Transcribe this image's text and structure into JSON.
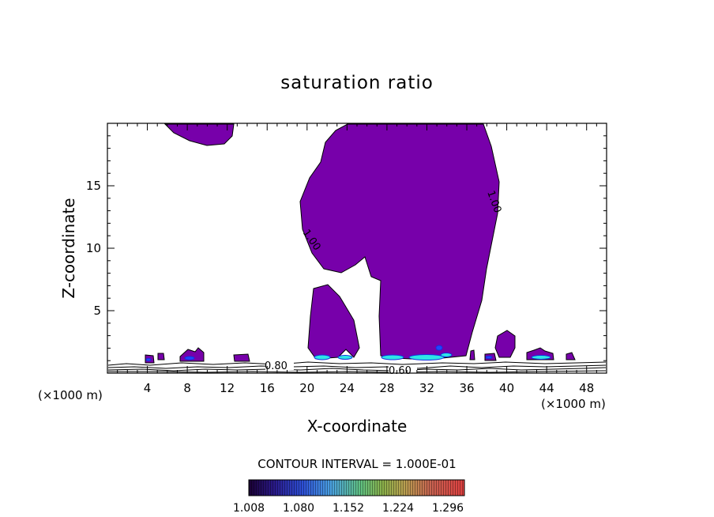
{
  "chart_data": {
    "type": "contour",
    "title": "saturation ratio",
    "xlabel": "X-coordinate",
    "ylabel": "Z-coordinate",
    "x_units_left": "(×1000 m)",
    "x_units_right": "(×1000 m)",
    "xlim": [
      0,
      50
    ],
    "ylim": [
      0,
      20
    ],
    "x_ticks": [
      4,
      8,
      12,
      16,
      20,
      24,
      28,
      32,
      36,
      40,
      44,
      48
    ],
    "y_ticks": [
      5,
      10,
      15
    ],
    "contour_labels": [
      {
        "text": "1.00",
        "x": 20.2,
        "y": 10.8,
        "rotation": 55
      },
      {
        "text": "1.00",
        "x": 38.9,
        "y": 13.2,
        "rotation": 70
      },
      {
        "text": "0.80",
        "x": 17.4,
        "y": 0.55,
        "rotation": 0
      },
      {
        "text": "0.60",
        "x": 29.8,
        "y": 0.15,
        "rotation": 0
      }
    ],
    "contour_interval_text": "CONTOUR INTERVAL = 1.000E-01",
    "colorbar": {
      "min": 1.008,
      "max": 1.32,
      "tick_labels": [
        "1.008",
        "1.080",
        "1.152",
        "1.224",
        "1.296"
      ]
    }
  },
  "colors": {
    "fill_main": "#7700aa",
    "outline": "#000000",
    "cyan_core": "#2ee6e6",
    "blue_core": "#2244ff"
  }
}
